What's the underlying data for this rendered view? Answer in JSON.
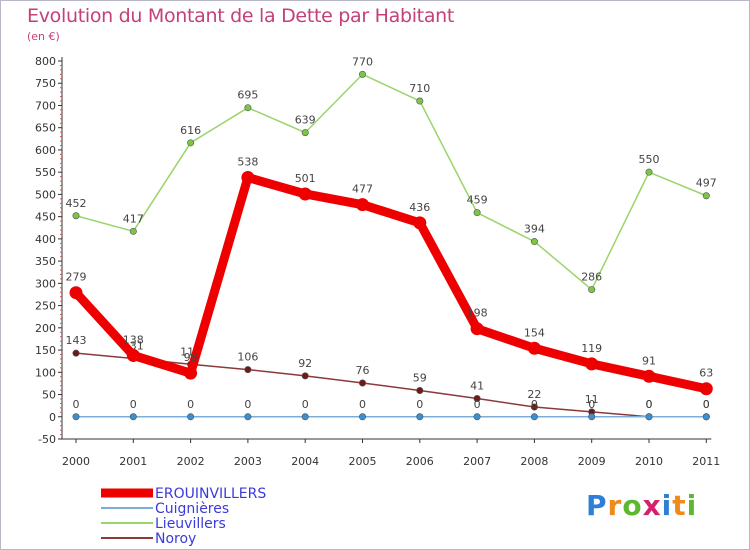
{
  "header": {
    "title": "Evolution du Montant de la Dette par Habitant",
    "subtitle": "(en €)"
  },
  "logo": {
    "text": "Proxiti",
    "letter_colors": [
      "#2f7fd6",
      "#f08a1c",
      "#5cb82e",
      "#d6206b",
      "#2f7fd6",
      "#f08a1c",
      "#5cb82e"
    ]
  },
  "chart_data": {
    "type": "line",
    "title": "Evolution du Montant de la Dette par Habitant",
    "subtitle": "(en €)",
    "xlabel": "",
    "ylabel": "",
    "x": [
      "2000",
      "2001",
      "2002",
      "2003",
      "2004",
      "2005",
      "2006",
      "2007",
      "2008",
      "2009",
      "2010",
      "2011"
    ],
    "yticks": [
      "-50",
      "0",
      "50",
      "100",
      "150",
      "200",
      "250",
      "300",
      "350",
      "400",
      "450",
      "500",
      "550",
      "600",
      "650",
      "700",
      "750",
      "800"
    ],
    "ylim": [
      -50,
      800
    ],
    "grid": false,
    "legend_position": "bottom-left",
    "series": [
      {
        "name": "Lieuvillers",
        "color": "#9ad46a",
        "marker_color": "#7cc645",
        "values": [
          452,
          417,
          616,
          695,
          639,
          770,
          710,
          459,
          394,
          286,
          550,
          497
        ],
        "labels": [
          "452",
          "417",
          "616",
          "695",
          "639",
          "770",
          "710",
          "459",
          "394",
          "286",
          "550",
          "497"
        ]
      },
      {
        "name": "Noroy",
        "color": "#8a3a3a",
        "marker_color": "#6e1a1a",
        "values": [
          143,
          131,
          118,
          106,
          92,
          76,
          59,
          41,
          22,
          11,
          0,
          0
        ],
        "labels": [
          "143",
          "131",
          "118",
          "106",
          "92",
          "76",
          "59",
          "41",
          "22",
          "11",
          "0",
          "0"
        ]
      },
      {
        "name": "Cuignières",
        "color": "#7aaed8",
        "marker_color": "#3a8fd0",
        "values": [
          0,
          0,
          0,
          0,
          0,
          0,
          0,
          0,
          0,
          0,
          0,
          0
        ],
        "labels": [
          "0",
          "0",
          "0",
          "0",
          "0",
          "0",
          "0",
          "0",
          "0",
          "0",
          "0",
          "0"
        ]
      },
      {
        "name": "EROUINVILLERS",
        "color": "#ee0000",
        "marker_color": "#ee0000",
        "values": [
          279,
          138,
          98,
          538,
          501,
          477,
          436,
          198,
          154,
          119,
          91,
          63
        ],
        "labels": [
          "279",
          "138",
          "98",
          "538",
          "501",
          "477",
          "436",
          "198",
          "154",
          "119",
          "91",
          "63"
        ]
      }
    ],
    "legend": [
      {
        "name": "EROUINVILLERS",
        "color": "#ee0000",
        "text_color": "#3a3adb"
      },
      {
        "name": "Cuignières",
        "color": "#7aaed8",
        "text_color": "#3a3adb"
      },
      {
        "name": "Lieuvillers",
        "color": "#9ad46a",
        "text_color": "#3a3adb"
      },
      {
        "name": "Noroy",
        "color": "#8a3a3a",
        "text_color": "#3a3adb"
      }
    ]
  }
}
